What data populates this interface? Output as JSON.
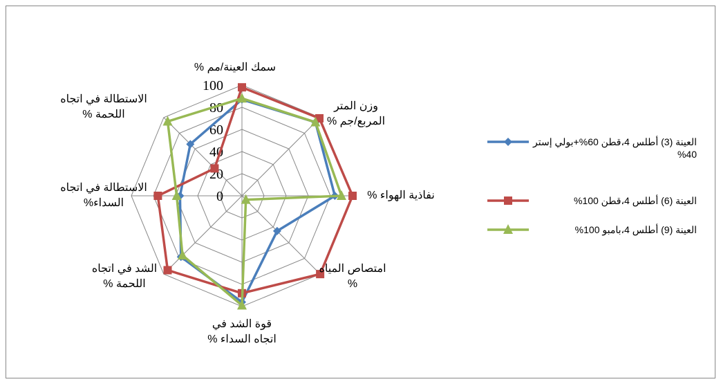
{
  "chart_data": {
    "type": "radar",
    "categories": [
      "سمك العينة/مم %",
      "وزن المتر المربع/جم %",
      "نفاذية الهواء %",
      "امتصاص المياه %",
      "قوة الشد في اتجاه السداء %",
      "الشد في اتجاه اللحمة %",
      "الاستطالة في اتجاه السداء%",
      "الاستطالة في اتجاه اللحمة %"
    ],
    "series": [
      {
        "name": "العينة (3) أطلس 4،قطن 60%+بولي إستر 40%",
        "color": "#4a7ebb",
        "marker": "diamond",
        "values": [
          87,
          94,
          84,
          45,
          96,
          78,
          56,
          66
        ]
      },
      {
        "name": "العينة (6) أطلس 4،قطن 100%",
        "color": "#be4b48",
        "marker": "square",
        "values": [
          98,
          99,
          100,
          100,
          88,
          95,
          76,
          35
        ]
      },
      {
        "name": "العينة (9) أطلس 4،بامبو 100%",
        "color": "#98b954",
        "marker": "triangle",
        "values": [
          88,
          94,
          90,
          5,
          99,
          76,
          59,
          95
        ]
      }
    ],
    "ylim": [
      0,
      100
    ],
    "yticks": [
      0,
      20,
      40,
      60,
      80,
      100
    ],
    "grid": true,
    "legend": "right"
  }
}
